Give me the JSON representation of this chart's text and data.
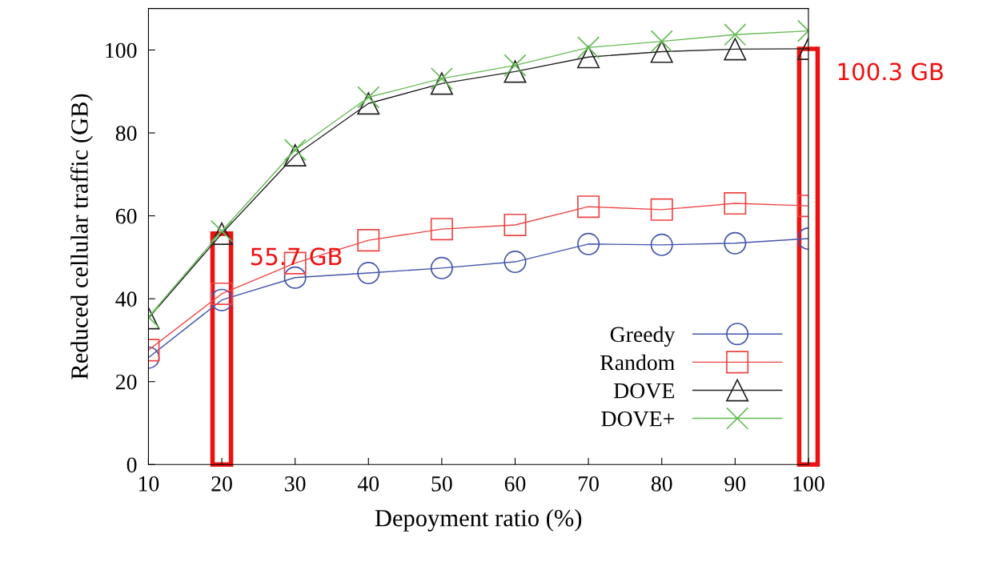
{
  "chart_data": {
    "type": "line",
    "xlabel": "Depoyment ratio (%)",
    "ylabel": "Reduced cellular traffic (GB)",
    "x": [
      10,
      20,
      30,
      40,
      50,
      60,
      70,
      80,
      90,
      100
    ],
    "series": [
      {
        "name": "Greedy",
        "color": "#4455aa",
        "marker": "circle",
        "values": [
          25.8,
          39.7,
          45.1,
          46.2,
          47.4,
          48.9,
          53.2,
          53.0,
          53.4,
          54.5
        ]
      },
      {
        "name": "Random",
        "color": "#ee4444",
        "marker": "square",
        "values": [
          27.6,
          41.2,
          48.6,
          54.1,
          56.8,
          57.8,
          62.2,
          61.5,
          63.0,
          62.4
        ]
      },
      {
        "name": "DOVE",
        "color": "#222222",
        "marker": "triangle",
        "values": [
          35.3,
          55.7,
          74.6,
          87.1,
          91.9,
          94.8,
          98.3,
          99.6,
          100.2,
          100.3
        ]
      },
      {
        "name": "DOVE+",
        "color": "#66bb55",
        "marker": "cross",
        "values": [
          35.6,
          56.3,
          75.9,
          88.6,
          93.1,
          96.3,
          100.6,
          102.1,
          103.7,
          104.6
        ]
      },
      {
        "type": "bar",
        "color": "#ee1111",
        "values": [
          null,
          55.7,
          null,
          null,
          null,
          null,
          null,
          null,
          null,
          100.3
        ]
      }
    ],
    "xlim": [
      10,
      100
    ],
    "xticks": [
      10,
      20,
      30,
      40,
      50,
      60,
      70,
      80,
      90,
      100
    ],
    "ylim": [
      0,
      110
    ],
    "yticks": [
      0,
      20,
      40,
      60,
      80,
      100
    ],
    "grid": false,
    "legend": "bottom right",
    "line_style": "solid",
    "annotations": [
      {
        "text": "55.7 GB",
        "x": 20,
        "y": 55.7
      },
      {
        "text": "100.3 GB",
        "x": 100,
        "y": 100.3
      }
    ]
  }
}
